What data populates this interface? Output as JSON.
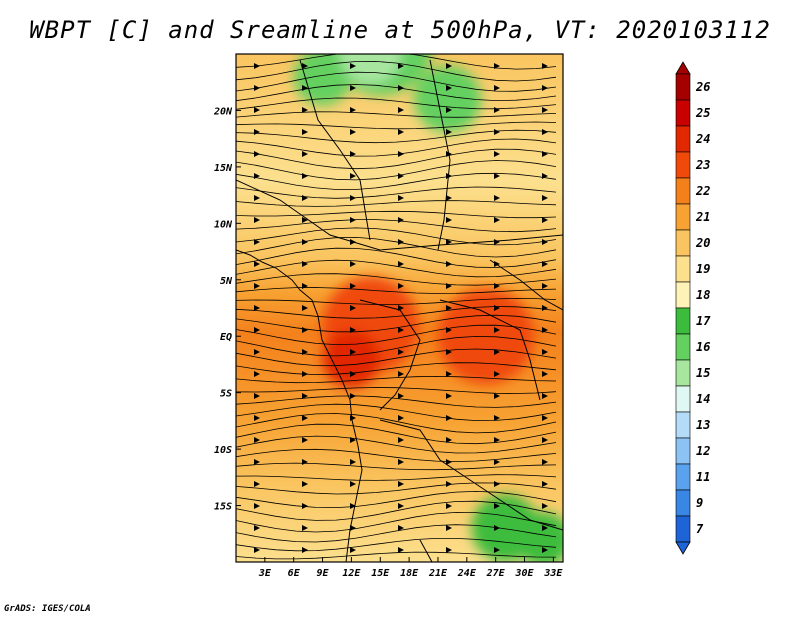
{
  "title": "WBPT [C] and Sreamline at 500hPa, VT: 2020103112",
  "credit": "GrADS: IGES/COLA",
  "map": {
    "lon_range": [
      0,
      34
    ],
    "lat_range": [
      -20,
      25
    ],
    "lon_ticks": [
      {
        "value": 3,
        "label": "3E"
      },
      {
        "value": 6,
        "label": "6E"
      },
      {
        "value": 9,
        "label": "9E"
      },
      {
        "value": 12,
        "label": "12E"
      },
      {
        "value": 15,
        "label": "15E"
      },
      {
        "value": 18,
        "label": "18E"
      },
      {
        "value": 21,
        "label": "21E"
      },
      {
        "value": 24,
        "label": "24E"
      },
      {
        "value": 27,
        "label": "27E"
      },
      {
        "value": 30,
        "label": "30E"
      },
      {
        "value": 33,
        "label": "33E"
      }
    ],
    "lat_ticks": [
      {
        "value": 20,
        "label": "20N"
      },
      {
        "value": 15,
        "label": "15N"
      },
      {
        "value": 10,
        "label": "10N"
      },
      {
        "value": 5,
        "label": "5N"
      },
      {
        "value": 0,
        "label": "EQ"
      },
      {
        "value": -5,
        "label": "5S"
      },
      {
        "value": -10,
        "label": "10S"
      },
      {
        "value": -15,
        "label": "15S"
      }
    ]
  },
  "colorbar": {
    "levels": [
      {
        "label": "26",
        "color": "#a50000"
      },
      {
        "label": "25",
        "color": "#c80000"
      },
      {
        "label": "24",
        "color": "#e22800"
      },
      {
        "label": "23",
        "color": "#f04a0a"
      },
      {
        "label": "22",
        "color": "#f4801c"
      },
      {
        "label": "21",
        "color": "#f7a232"
      },
      {
        "label": "20",
        "color": "#fac560"
      },
      {
        "label": "19",
        "color": "#fce08e"
      },
      {
        "label": "18",
        "color": "#fdf3b8"
      },
      {
        "label": "17",
        "color": "#3cbc3c"
      },
      {
        "label": "16",
        "color": "#64d060"
      },
      {
        "label": "15",
        "color": "#a8e6a0"
      },
      {
        "label": "14",
        "color": "#e0f8f4"
      },
      {
        "label": "13",
        "color": "#b4dcf8"
      },
      {
        "label": "12",
        "color": "#8cc2f4"
      },
      {
        "label": "11",
        "color": "#5aa2ee"
      },
      {
        "label": "9",
        "color": "#3a86e4"
      },
      {
        "label": "7",
        "color": "#1e64d6"
      }
    ],
    "bottom_color": "#1e64d6"
  },
  "field": {
    "blobs": [
      {
        "lon": 15,
        "lat": 26,
        "radius": 5.5,
        "color": "#64d060"
      },
      {
        "lon": 9,
        "lat": 23,
        "radius": 3,
        "color": "#64d060"
      },
      {
        "lon": 22,
        "lat": 21,
        "radius": 3.5,
        "color": "#64d060"
      },
      {
        "lon": 14,
        "lat": 25,
        "radius": 3.2,
        "color": "#a8e6a0"
      },
      {
        "lon": 28,
        "lat": -17,
        "radius": 3.5,
        "color": "#3cbc3c"
      },
      {
        "lon": 32,
        "lat": -18,
        "radius": 2.8,
        "color": "#3cbc3c"
      },
      {
        "lon": 14,
        "lat": 1,
        "radius": 5,
        "color": "#f04a0a"
      },
      {
        "lon": 26,
        "lat": 0,
        "radius": 5,
        "color": "#f04a0a"
      },
      {
        "lon": 12,
        "lat": -2,
        "radius": 3,
        "color": "#e22800"
      }
    ]
  }
}
